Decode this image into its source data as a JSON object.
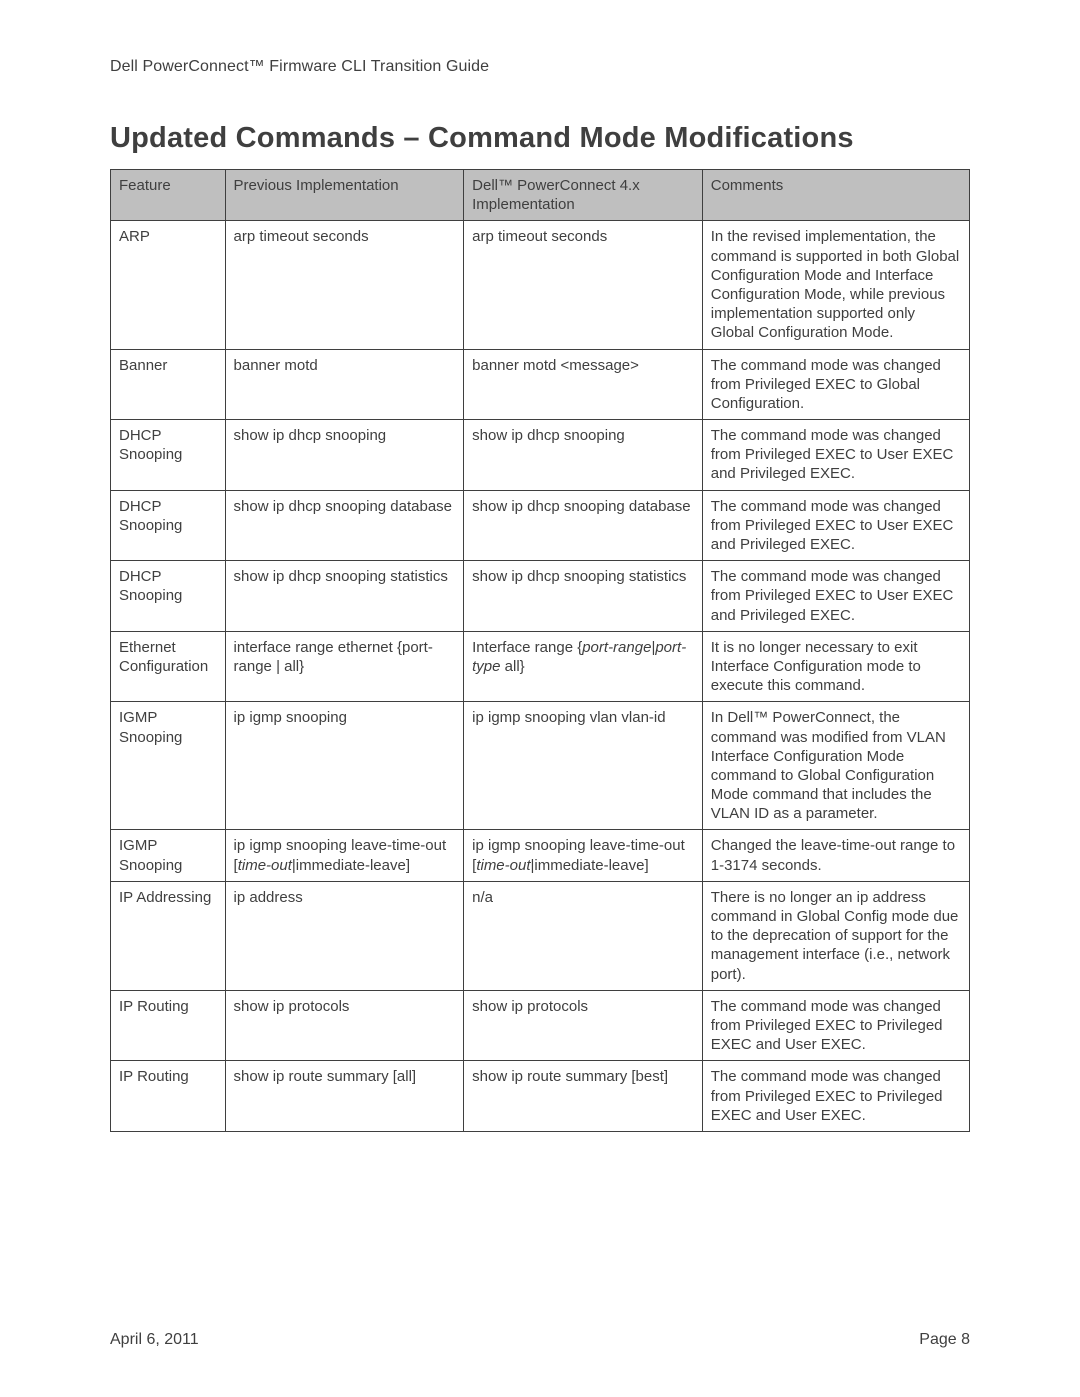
{
  "header": {
    "doc_title": "Dell PowerConnect™ Firmware CLI Transition Guide"
  },
  "title": "Updated Commands – Command Mode Modifications",
  "table": {
    "columns": [
      "Feature",
      "Previous Implementation",
      "Dell™ PowerConnect 4.x Implementation",
      "Comments"
    ],
    "header_bg": "#bfbfbf",
    "border_color": "#3f3f3f",
    "rows": [
      {
        "feature": "ARP",
        "prev": "arp timeout seconds",
        "new": "arp timeout seconds",
        "comment": "In the revised implementation, the command is supported in both Global Configuration Mode and Interface Configuration Mode, while previous implementation supported only Global Configuration Mode."
      },
      {
        "feature": "Banner",
        "prev": "banner motd",
        "new": "banner motd <message>",
        "comment": "The command mode was changed from Privileged EXEC to Global Configuration."
      },
      {
        "feature": "DHCP Snooping",
        "prev": "show ip dhcp snooping",
        "new": "show ip dhcp snooping",
        "comment": "The command mode was changed from Privileged EXEC to User EXEC and Privileged EXEC."
      },
      {
        "feature": "DHCP Snooping",
        "prev": "show ip dhcp snooping database",
        "new": "show ip dhcp snooping database",
        "comment": "The command mode was changed from Privileged EXEC to User EXEC and Privileged EXEC."
      },
      {
        "feature": "DHCP Snooping",
        "prev": "show ip dhcp snooping statistics",
        "new": "show ip dhcp snooping statistics",
        "comment": "The command mode was changed from Privileged EXEC to User EXEC and Privileged EXEC."
      },
      {
        "feature": "Ethernet Configuration",
        "prev_html": "interface range ethernet {port-range | all}",
        "new_html": "Interface range {<i>port-range</i>|<i>port-type</i> all}",
        "comment": "It is no longer necessary to exit Interface Configuration mode to execute this command."
      },
      {
        "feature": "IGMP Snooping",
        "prev": "ip igmp snooping",
        "new": "ip igmp snooping vlan vlan-id",
        "comment": "In Dell™ PowerConnect, the command was modified from VLAN Interface Configuration Mode command to Global Configuration Mode command that includes the VLAN ID as a parameter."
      },
      {
        "feature": "IGMP Snooping",
        "prev_html": "ip igmp snooping leave-time-out [<i>time-out</i>|immediate-leave]",
        "new_html": "ip igmp snooping leave-time-out [<i>time-out</i>|immediate-leave]",
        "comment": "Changed the leave-time-out range to 1-3174 seconds."
      },
      {
        "feature": "IP Addressing",
        "prev": "ip address",
        "new": "n/a",
        "comment": "There is no longer an ip address command in Global Config mode due to the deprecation of support for the management interface (i.e., network port)."
      },
      {
        "feature": "IP Routing",
        "prev": "show ip protocols",
        "new": "show ip protocols",
        "comment": "The command mode was changed from Privileged EXEC to Privileged EXEC and User EXEC."
      },
      {
        "feature": "IP Routing",
        "prev": "show ip route summary [all]",
        "new": "show ip route summary [best]",
        "comment": "The command mode was changed from Privileged EXEC to Privileged EXEC and User EXEC."
      }
    ]
  },
  "footer": {
    "date": "April 6, 2011",
    "page": "Page 8"
  }
}
